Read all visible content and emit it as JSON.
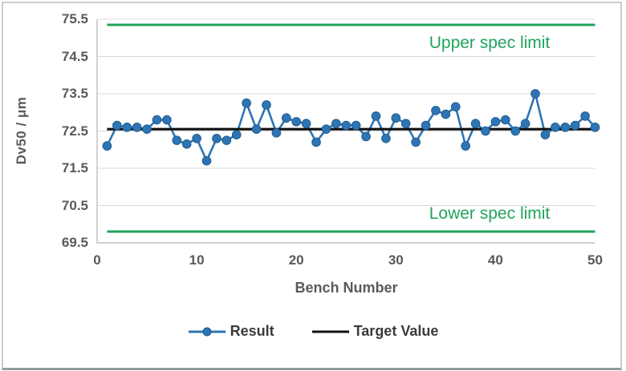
{
  "colors": {
    "series_blue": "#2E75B6",
    "series_blue_dark": "#1F5C8F",
    "spec_green": "#21A45C",
    "target_black": "#111111",
    "grid": "#D9D9D9",
    "axis": "#BFBFBF",
    "tick_text": "#595959",
    "legend_text": "#3B3B3B"
  },
  "chart_data": {
    "type": "line",
    "title": "",
    "xlabel": "Bench Number",
    "ylabel": "Dv50 / μm",
    "xlim": [
      0,
      50
    ],
    "ylim": [
      69.5,
      75.5
    ],
    "xticks": [
      0,
      10,
      20,
      30,
      40,
      50
    ],
    "yticks": [
      75.5,
      74.5,
      73.5,
      72.5,
      71.5,
      70.5,
      69.5
    ],
    "grid": true,
    "legend_position": "bottom",
    "x": [
      1,
      2,
      3,
      4,
      5,
      6,
      7,
      8,
      9,
      10,
      11,
      12,
      13,
      14,
      15,
      16,
      17,
      18,
      19,
      20,
      21,
      22,
      23,
      24,
      25,
      26,
      27,
      28,
      29,
      30,
      31,
      32,
      33,
      34,
      35,
      36,
      37,
      38,
      39,
      40,
      41,
      42,
      43,
      44,
      45,
      46,
      47,
      48,
      49,
      50
    ],
    "series": [
      {
        "name": "Result",
        "type": "line_markers",
        "color": "#2E75B6",
        "values": [
          72.1,
          72.65,
          72.6,
          72.6,
          72.55,
          72.8,
          72.8,
          72.25,
          72.15,
          72.3,
          71.7,
          72.3,
          72.25,
          72.4,
          73.25,
          72.55,
          73.2,
          72.45,
          72.85,
          72.75,
          72.7,
          72.2,
          72.55,
          72.7,
          72.65,
          72.65,
          72.35,
          72.9,
          72.3,
          72.85,
          72.7,
          72.2,
          72.65,
          73.05,
          72.95,
          73.15,
          72.1,
          72.7,
          72.5,
          72.75,
          72.8,
          72.5,
          72.7,
          73.5,
          72.4,
          72.6,
          72.6,
          72.65,
          72.9,
          72.6
        ]
      },
      {
        "name": "Target Value",
        "type": "hline",
        "color": "#111111",
        "value": 72.55
      }
    ],
    "annotations": [
      {
        "label": "Upper spec limit",
        "type": "hline",
        "value": 75.35,
        "color": "#21A45C"
      },
      {
        "label": "Lower spec limit",
        "type": "hline",
        "value": 69.8,
        "color": "#21A45C"
      }
    ]
  }
}
